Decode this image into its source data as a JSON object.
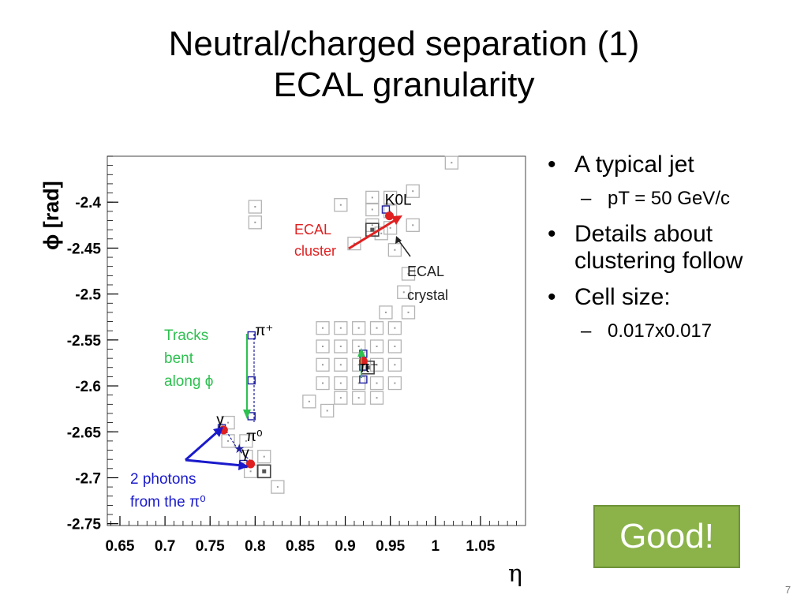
{
  "slide": {
    "title_line1": "Neutral/charged separation (1)",
    "title_line2": "ECAL granularity",
    "page_number": "7",
    "badge": "Good!"
  },
  "bullets": [
    {
      "text": "A typical jet",
      "sub": [
        "pT = 50 GeV/c"
      ]
    },
    {
      "text": "Details about clustering follow",
      "sub": []
    },
    {
      "text": "Cell size:",
      "sub": [
        "0.017x0.017"
      ]
    }
  ],
  "chart_data": {
    "type": "scatter",
    "xlabel": "η",
    "ylabel": "ϕ [rad]",
    "xlim": [
      0.636,
      1.1
    ],
    "ylim": [
      -2.752,
      -2.35
    ],
    "x_ticks": [
      0.65,
      0.7,
      0.75,
      0.8,
      0.85,
      0.9,
      0.95,
      1,
      1.05
    ],
    "x_tick_labels": [
      "0.65",
      "0.7",
      "0.75",
      "0.8",
      "0.85",
      "0.9",
      "0.95",
      "1",
      "1.05"
    ],
    "y_ticks": [
      -2.4,
      -2.45,
      -2.5,
      -2.55,
      -2.6,
      -2.65,
      -2.7,
      -2.75
    ],
    "y_tick_labels": [
      "-2.4",
      "-2.45",
      "-2.5",
      -2.55,
      "-2.6",
      "-2.65",
      "-2.7",
      "-2.75"
    ],
    "colors": {
      "cluster": "#e02020",
      "track": "#2020a0",
      "annotation_red": "#e02020",
      "annotation_green": "#2ec050",
      "annotation_blue": "#1a1acc",
      "cell": "#b4b4b4"
    },
    "cells": [
      [
        1.018,
        -2.357
      ],
      [
        0.975,
        -2.388
      ],
      [
        0.95,
        -2.395
      ],
      [
        0.93,
        -2.395
      ],
      [
        0.895,
        -2.403
      ],
      [
        0.8,
        -2.405
      ],
      [
        0.8,
        -2.422
      ],
      [
        0.93,
        -2.408
      ],
      [
        0.95,
        -2.41
      ],
      [
        0.95,
        -2.428
      ],
      [
        0.975,
        -2.425
      ],
      [
        0.93,
        -2.425
      ],
      [
        0.94,
        -2.434
      ],
      [
        0.91,
        -2.445
      ],
      [
        0.955,
        -2.452
      ],
      [
        0.97,
        -2.478
      ],
      [
        0.965,
        -2.498
      ],
      [
        0.945,
        -2.52
      ],
      [
        0.97,
        -2.52
      ],
      [
        0.875,
        -2.537
      ],
      [
        0.895,
        -2.537
      ],
      [
        0.915,
        -2.537
      ],
      [
        0.935,
        -2.537
      ],
      [
        0.955,
        -2.537
      ],
      [
        0.875,
        -2.557
      ],
      [
        0.895,
        -2.557
      ],
      [
        0.915,
        -2.557
      ],
      [
        0.935,
        -2.557
      ],
      [
        0.955,
        -2.557
      ],
      [
        0.875,
        -2.577
      ],
      [
        0.895,
        -2.577
      ],
      [
        0.915,
        -2.577
      ],
      [
        0.935,
        -2.577
      ],
      [
        0.955,
        -2.577
      ],
      [
        0.875,
        -2.597
      ],
      [
        0.895,
        -2.597
      ],
      [
        0.915,
        -2.597
      ],
      [
        0.935,
        -2.597
      ],
      [
        0.955,
        -2.597
      ],
      [
        0.895,
        -2.613
      ],
      [
        0.915,
        -2.613
      ],
      [
        0.935,
        -2.613
      ],
      [
        0.86,
        -2.617
      ],
      [
        0.88,
        -2.627
      ],
      [
        0.77,
        -2.64
      ],
      [
        0.79,
        -2.66
      ],
      [
        0.77,
        -2.66
      ],
      [
        0.79,
        -2.677
      ],
      [
        0.81,
        -2.677
      ],
      [
        0.795,
        -2.693
      ],
      [
        0.81,
        -2.693
      ],
      [
        0.825,
        -2.71
      ]
    ],
    "dark_cells": [
      [
        0.93,
        -2.43
      ],
      [
        0.81,
        -2.693
      ],
      [
        0.925,
        -2.58
      ]
    ],
    "clusters": [
      [
        0.949,
        -2.415
      ],
      [
        0.765,
        -2.648
      ],
      [
        0.795,
        -2.685
      ],
      [
        0.92,
        -2.573
      ]
    ],
    "track_points": [
      [
        0.796,
        -2.545
      ],
      [
        0.796,
        -2.594
      ],
      [
        0.796,
        -2.633
      ],
      [
        0.92,
        -2.565
      ],
      [
        0.92,
        -2.579
      ],
      [
        0.92,
        -2.593
      ],
      [
        0.945,
        -2.408
      ],
      [
        0.763,
        -2.646
      ],
      [
        0.787,
        -2.685
      ]
    ],
    "annotations": [
      {
        "text_lines": [
          "ECAL",
          "cluster"
        ],
        "color": "#e02020"
      },
      {
        "text_lines": [
          "ECAL",
          "crystal"
        ],
        "color": "#222222"
      },
      {
        "text_lines": [
          "Tracks",
          "bent",
          "along ϕ"
        ],
        "color": "#2ec050"
      },
      {
        "text_lines": [
          "2 photons",
          "from the π⁰"
        ],
        "color": "#1a1acc"
      }
    ],
    "particle_labels": [
      {
        "text": "K0L",
        "x": 0.944,
        "y": -2.403
      },
      {
        "text": "π⁺",
        "x": 0.8,
        "y": -2.545
      },
      {
        "text": "π⁻",
        "x": 0.916,
        "y": -2.585
      },
      {
        "text": "π⁰",
        "x": 0.79,
        "y": -2.66
      },
      {
        "text": "γ",
        "x": 0.757,
        "y": -2.642
      },
      {
        "text": "γ",
        "x": 0.785,
        "y": -2.678
      }
    ]
  }
}
